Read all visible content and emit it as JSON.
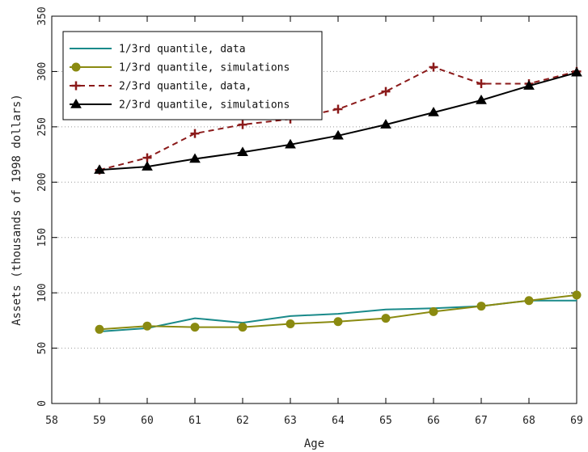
{
  "chart_data": {
    "type": "line",
    "title": "",
    "xlabel": "Age",
    "ylabel": "Assets (thousands of 1998 dollars)",
    "xlim": [
      58,
      69
    ],
    "ylim": [
      0,
      350
    ],
    "xticks": [
      58,
      59,
      60,
      61,
      62,
      63,
      64,
      65,
      66,
      67,
      68,
      69
    ],
    "yticks": [
      0,
      50,
      100,
      150,
      200,
      250,
      300,
      350
    ],
    "grid": "horizontal dotted",
    "legend_position": "top-left",
    "x": [
      59,
      60,
      61,
      62,
      63,
      64,
      65,
      66,
      67,
      68,
      69
    ],
    "series": [
      {
        "name": "1/3rd quantile, data",
        "color": "#1a8a8a",
        "line": "solid",
        "marker": "none",
        "values": [
          65,
          68,
          77,
          73,
          79,
          81,
          85,
          86,
          88,
          93,
          93
        ]
      },
      {
        "name": "1/3rd quantile, simulations",
        "color": "#8a8a10",
        "line": "solid",
        "marker": "circle",
        "values": [
          67,
          70,
          69,
          69,
          72,
          74,
          77,
          83,
          88,
          93,
          98
        ]
      },
      {
        "name": "2/3rd quantile, data,",
        "color": "#8b1a1a",
        "line": "dashed",
        "marker": "plus",
        "values": [
          211,
          222,
          244,
          252,
          257,
          266,
          282,
          304,
          289,
          289,
          300
        ]
      },
      {
        "name": "2/3rd quantile, simulations",
        "color": "#000000",
        "line": "solid",
        "marker": "triangle",
        "values": [
          211,
          214,
          221,
          227,
          234,
          242,
          252,
          263,
          274,
          287,
          299
        ]
      }
    ]
  }
}
